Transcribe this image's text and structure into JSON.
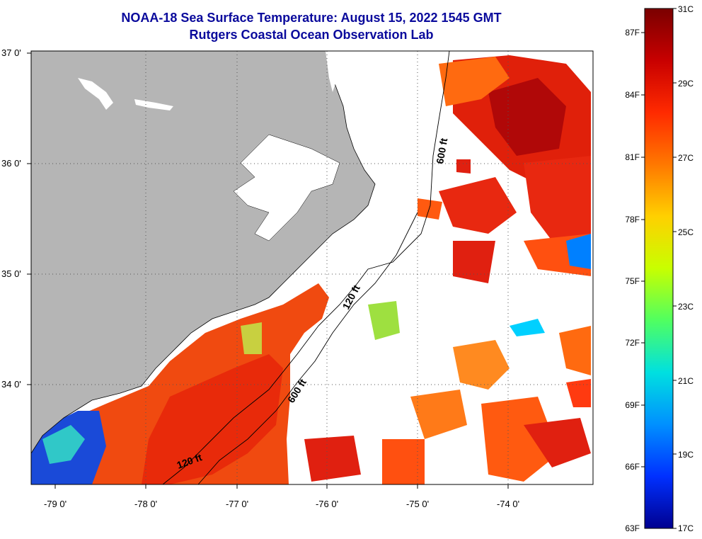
{
  "title": {
    "line1": "NOAA-18 Sea Surface Temperature:  August 15, 2022 1545 GMT",
    "line2": "Rutgers Coastal Ocean Observation Lab"
  },
  "map": {
    "lon_labels": [
      "-79 0'",
      "-78 0'",
      "-77 0'",
      "-76 0'",
      "-75 0'",
      "-74 0'"
    ],
    "lat_labels": [
      "37 0'",
      "36 0'",
      "35 0'",
      "34 0'"
    ],
    "contour_labels": [
      "600 ft",
      "120 ft",
      "600 ft",
      "120 ft"
    ],
    "colors": {
      "land": "#b5b5b5",
      "cloud": "#ffffff",
      "frame": "#000000"
    }
  },
  "colorbar": {
    "celsius": [
      "31C",
      "29C",
      "27C",
      "25C",
      "23C",
      "21C",
      "19C",
      "17C"
    ],
    "fahrenheit": [
      "87F",
      "84F",
      "81F",
      "78F",
      "75F",
      "72F",
      "69F",
      "66F",
      "63F"
    ],
    "stops": [
      "#7a0000",
      "#c80000",
      "#ff2a00",
      "#ff7800",
      "#ffd000",
      "#c8ff00",
      "#50ff60",
      "#00e0e0",
      "#0090ff",
      "#0030ff",
      "#000090"
    ]
  }
}
